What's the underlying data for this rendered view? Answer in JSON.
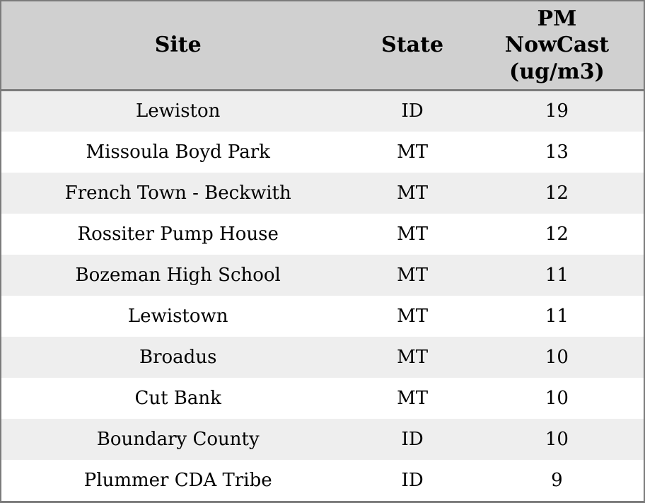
{
  "table": {
    "columns": [
      {
        "key": "site",
        "label": "Site"
      },
      {
        "key": "state",
        "label": "State"
      },
      {
        "key": "pm",
        "label": "PM NowCast (ug/m3)"
      }
    ],
    "rows": [
      {
        "site": "Lewiston",
        "state": "ID",
        "pm": "19"
      },
      {
        "site": "Missoula Boyd Park",
        "state": "MT",
        "pm": "13"
      },
      {
        "site": "French Town - Beckwith",
        "state": "MT",
        "pm": "12"
      },
      {
        "site": "Rossiter Pump House",
        "state": "MT",
        "pm": "12"
      },
      {
        "site": "Bozeman High School",
        "state": "MT",
        "pm": "11"
      },
      {
        "site": "Lewistown",
        "state": "MT",
        "pm": "11"
      },
      {
        "site": "Broadus",
        "state": "MT",
        "pm": "10"
      },
      {
        "site": "Cut Bank",
        "state": "MT",
        "pm": "10"
      },
      {
        "site": "Boundary County",
        "state": "ID",
        "pm": "10"
      },
      {
        "site": "Plummer CDA Tribe",
        "state": "ID",
        "pm": "9"
      }
    ]
  },
  "colors": {
    "header_bg": "#d0d0d0",
    "row_alt_bg": "#eeeeee",
    "row_bg": "#ffffff",
    "border": "#7b7b7b",
    "text": "#000000"
  },
  "chart_data": {
    "type": "table",
    "title": "",
    "columns": [
      "Site",
      "State",
      "PM NowCast (ug/m3)"
    ],
    "rows": [
      [
        "Lewiston",
        "ID",
        19
      ],
      [
        "Missoula Boyd Park",
        "MT",
        13
      ],
      [
        "French Town - Beckwith",
        "MT",
        12
      ],
      [
        "Rossiter Pump House",
        "MT",
        12
      ],
      [
        "Bozeman High School",
        "MT",
        11
      ],
      [
        "Lewistown",
        "MT",
        11
      ],
      [
        "Broadus",
        "MT",
        10
      ],
      [
        "Cut Bank",
        "MT",
        10
      ],
      [
        "Boundary County",
        "ID",
        10
      ],
      [
        "Plummer CDA Tribe",
        "ID",
        9
      ]
    ],
    "layout_hints": {
      "header_position": "top",
      "alternating_row_shading": true,
      "cell_alignment": "center",
      "grid": "outer-border-and-header-rule-only"
    }
  }
}
